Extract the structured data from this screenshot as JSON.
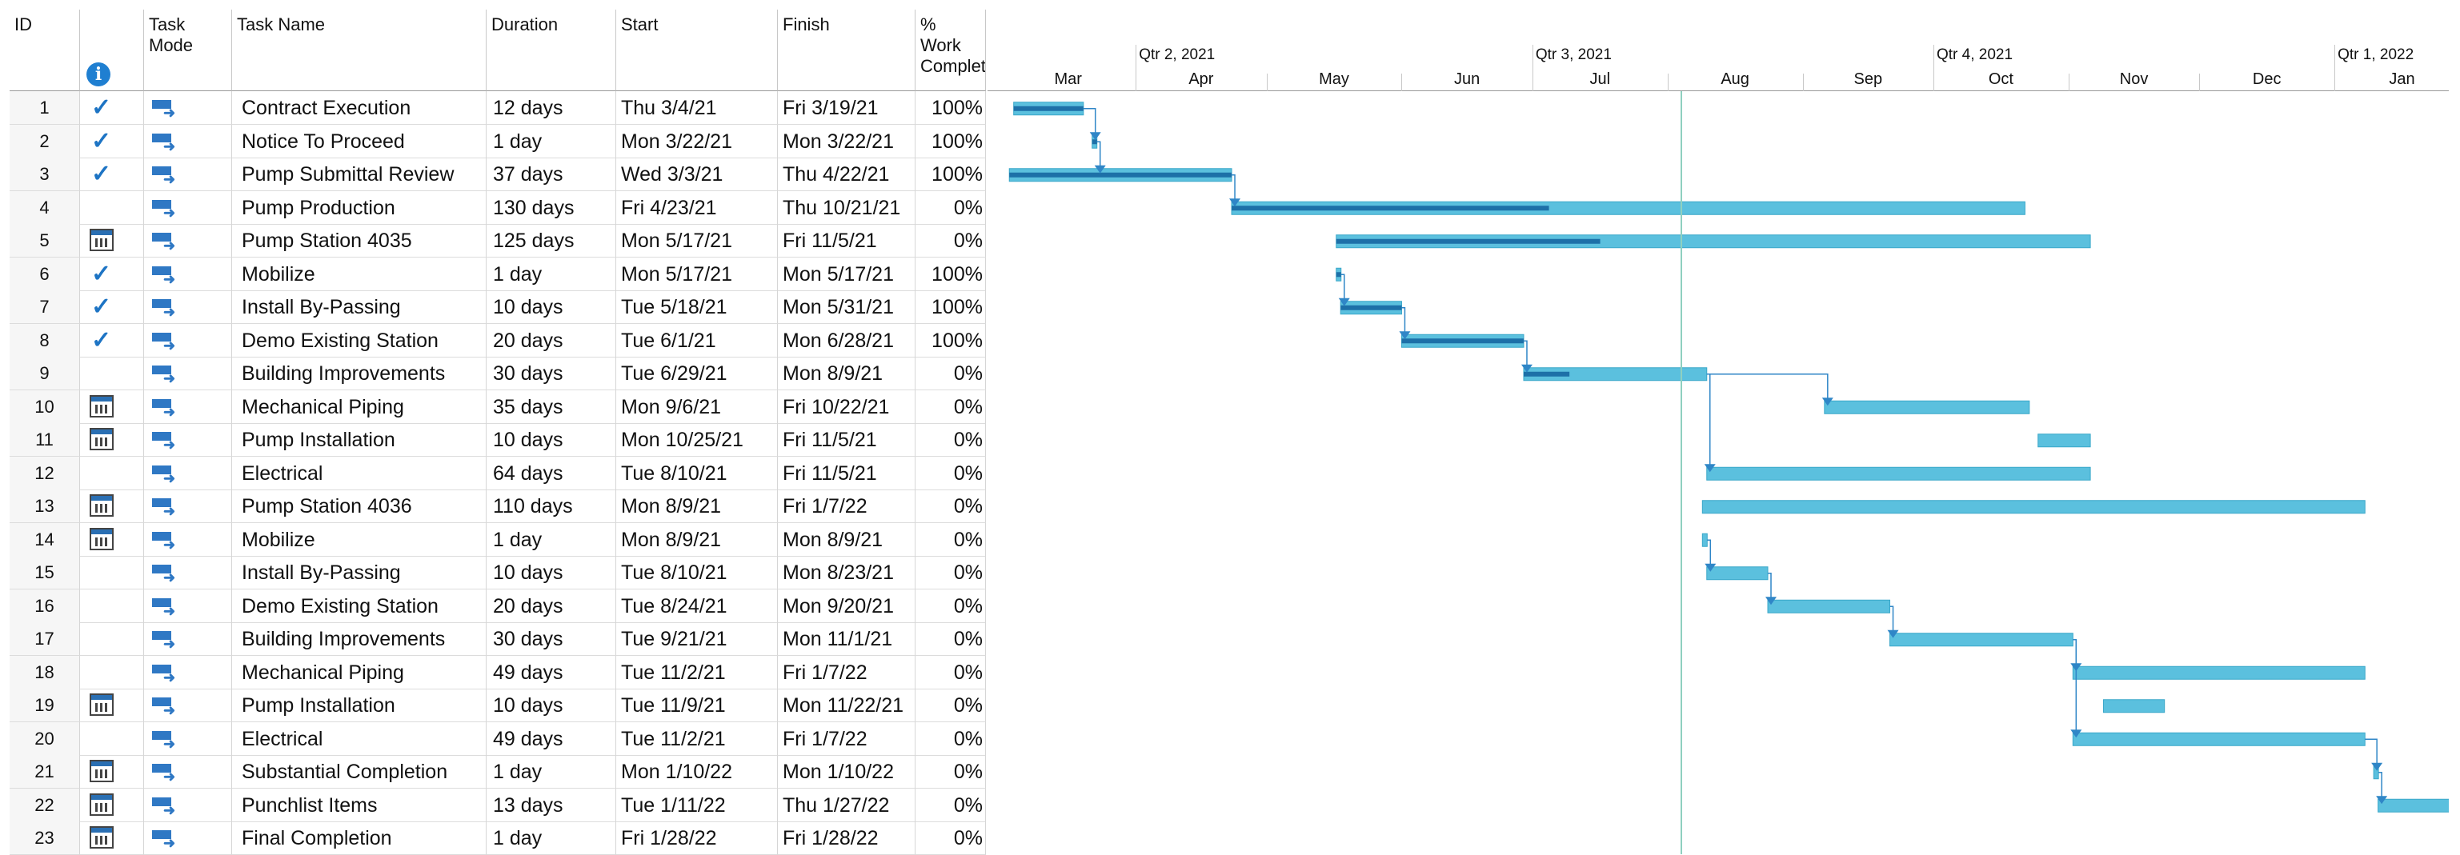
{
  "columns": {
    "id": "ID",
    "indicator_icon": "info-icon",
    "task_mode": "Task Mode",
    "task_name": "Task Name",
    "duration": "Duration",
    "start": "Start",
    "finish": "Finish",
    "pct_work": "% Work Complete"
  },
  "timescale": {
    "quarters": [
      "Qtr 2, 2021",
      "Qtr 3, 2021",
      "Qtr 4, 2021",
      "Qtr 1, 2022"
    ],
    "months": [
      "Mar",
      "Apr",
      "May",
      "Jun",
      "Jul",
      "Aug",
      "Sep",
      "Oct",
      "Nov",
      "Dec",
      "Jan"
    ]
  },
  "colors": {
    "bar": "#5bc0de",
    "progress": "#1d70a8",
    "link": "#2f86c7",
    "check": "#1d74c4",
    "today_line": "#8fd0c0"
  },
  "tasks": [
    {
      "id": "1",
      "indicator": "check",
      "name": "Contract Execution",
      "duration": "12 days",
      "start": "Thu 3/4/21",
      "finish": "Fri 3/19/21",
      "pct": "100%"
    },
    {
      "id": "2",
      "indicator": "check",
      "name": "Notice To Proceed",
      "duration": "1 day",
      "start": "Mon 3/22/21",
      "finish": "Mon 3/22/21",
      "pct": "100%"
    },
    {
      "id": "3",
      "indicator": "check",
      "name": "Pump Submittal Review",
      "duration": "37 days",
      "start": "Wed 3/3/21",
      "finish": "Thu 4/22/21",
      "pct": "100%"
    },
    {
      "id": "4",
      "indicator": "",
      "name": "Pump Production",
      "duration": "130 days",
      "start": "Fri 4/23/21",
      "finish": "Thu 10/21/21",
      "pct": "0%"
    },
    {
      "id": "5",
      "indicator": "calendar",
      "name": "Pump Station 4035",
      "duration": "125 days",
      "start": "Mon 5/17/21",
      "finish": "Fri 11/5/21",
      "pct": "0%"
    },
    {
      "id": "6",
      "indicator": "check",
      "name": "Mobilize",
      "duration": "1 day",
      "start": "Mon 5/17/21",
      "finish": "Mon 5/17/21",
      "pct": "100%"
    },
    {
      "id": "7",
      "indicator": "check",
      "name": "Install By-Passing",
      "duration": "10 days",
      "start": "Tue 5/18/21",
      "finish": "Mon 5/31/21",
      "pct": "100%"
    },
    {
      "id": "8",
      "indicator": "check",
      "name": "Demo Existing Station",
      "duration": "20 days",
      "start": "Tue 6/1/21",
      "finish": "Mon 6/28/21",
      "pct": "100%"
    },
    {
      "id": "9",
      "indicator": "",
      "name": "Building Improvements",
      "duration": "30 days",
      "start": "Tue 6/29/21",
      "finish": "Mon 8/9/21",
      "pct": "0%"
    },
    {
      "id": "10",
      "indicator": "calendar",
      "name": "Mechanical Piping",
      "duration": "35 days",
      "start": "Mon 9/6/21",
      "finish": "Fri 10/22/21",
      "pct": "0%"
    },
    {
      "id": "11",
      "indicator": "calendar",
      "name": "Pump Installation",
      "duration": "10 days",
      "start": "Mon 10/25/21",
      "finish": "Fri 11/5/21",
      "pct": "0%"
    },
    {
      "id": "12",
      "indicator": "",
      "name": "Electrical",
      "duration": "64 days",
      "start": "Tue 8/10/21",
      "finish": "Fri 11/5/21",
      "pct": "0%"
    },
    {
      "id": "13",
      "indicator": "calendar",
      "name": "Pump Station 4036",
      "duration": "110 days",
      "start": "Mon 8/9/21",
      "finish": "Fri 1/7/22",
      "pct": "0%"
    },
    {
      "id": "14",
      "indicator": "calendar",
      "name": "Mobilize",
      "duration": "1 day",
      "start": "Mon 8/9/21",
      "finish": "Mon 8/9/21",
      "pct": "0%"
    },
    {
      "id": "15",
      "indicator": "",
      "name": "Install By-Passing",
      "duration": "10 days",
      "start": "Tue 8/10/21",
      "finish": "Mon 8/23/21",
      "pct": "0%"
    },
    {
      "id": "16",
      "indicator": "",
      "name": "Demo Existing Station",
      "duration": "20 days",
      "start": "Tue 8/24/21",
      "finish": "Mon 9/20/21",
      "pct": "0%"
    },
    {
      "id": "17",
      "indicator": "",
      "name": "Building Improvements",
      "duration": "30 days",
      "start": "Tue 9/21/21",
      "finish": "Mon 11/1/21",
      "pct": "0%"
    },
    {
      "id": "18",
      "indicator": "",
      "name": "Mechanical Piping",
      "duration": "49 days",
      "start": "Tue 11/2/21",
      "finish": "Fri 1/7/22",
      "pct": "0%"
    },
    {
      "id": "19",
      "indicator": "calendar",
      "name": "Pump Installation",
      "duration": "10 days",
      "start": "Tue 11/9/21",
      "finish": "Mon 11/22/21",
      "pct": "0%"
    },
    {
      "id": "20",
      "indicator": "",
      "name": "Electrical",
      "duration": "49 days",
      "start": "Tue 11/2/21",
      "finish": "Fri 1/7/22",
      "pct": "0%"
    },
    {
      "id": "21",
      "indicator": "calendar",
      "name": "Substantial Completion",
      "duration": "1 day",
      "start": "Mon 1/10/22",
      "finish": "Mon 1/10/22",
      "pct": "0%"
    },
    {
      "id": "22",
      "indicator": "calendar",
      "name": "Punchlist Items",
      "duration": "13 days",
      "start": "Tue 1/11/22",
      "finish": "Thu 1/27/22",
      "pct": "0%"
    },
    {
      "id": "23",
      "indicator": "calendar",
      "name": "Final Completion",
      "duration": "1 day",
      "start": "Fri 1/28/22",
      "finish": "Fri 1/28/22",
      "pct": "0%"
    }
  ],
  "bars": [
    {
      "task": "1",
      "start": "2021-03-04",
      "finish": "2021-03-19",
      "progress": 1.0
    },
    {
      "task": "2",
      "start": "2021-03-22",
      "finish": "2021-03-22",
      "progress": 1.0
    },
    {
      "task": "3",
      "start": "2021-03-03",
      "finish": "2021-04-22",
      "progress": 1.0
    },
    {
      "task": "4",
      "start": "2021-04-23",
      "finish": "2021-10-21",
      "progress": 0.4
    },
    {
      "task": "5",
      "start": "2021-05-17",
      "finish": "2021-11-05",
      "progress": 0.35
    },
    {
      "task": "6",
      "start": "2021-05-17",
      "finish": "2021-05-17",
      "progress": 1.0
    },
    {
      "task": "7",
      "start": "2021-05-18",
      "finish": "2021-05-31",
      "progress": 1.0
    },
    {
      "task": "8",
      "start": "2021-06-01",
      "finish": "2021-06-28",
      "progress": 1.0
    },
    {
      "task": "9",
      "start": "2021-06-29",
      "finish": "2021-08-09",
      "progress": 0.25
    },
    {
      "task": "10",
      "start": "2021-09-06",
      "finish": "2021-10-22",
      "progress": 0
    },
    {
      "task": "11",
      "start": "2021-10-25",
      "finish": "2021-11-05",
      "progress": 0
    },
    {
      "task": "12",
      "start": "2021-08-10",
      "finish": "2021-11-05",
      "progress": 0
    },
    {
      "task": "13",
      "start": "2021-08-09",
      "finish": "2022-01-07",
      "progress": 0
    },
    {
      "task": "14",
      "start": "2021-08-09",
      "finish": "2021-08-09",
      "progress": 0
    },
    {
      "task": "15",
      "start": "2021-08-10",
      "finish": "2021-08-23",
      "progress": 0
    },
    {
      "task": "16",
      "start": "2021-08-24",
      "finish": "2021-09-20",
      "progress": 0
    },
    {
      "task": "17",
      "start": "2021-09-21",
      "finish": "2021-11-01",
      "progress": 0
    },
    {
      "task": "18",
      "start": "2021-11-02",
      "finish": "2022-01-07",
      "progress": 0
    },
    {
      "task": "19",
      "start": "2021-11-09",
      "finish": "2021-11-22",
      "progress": 0
    },
    {
      "task": "20",
      "start": "2021-11-02",
      "finish": "2022-01-07",
      "progress": 0
    },
    {
      "task": "21",
      "start": "2022-01-10",
      "finish": "2022-01-10",
      "progress": 0
    },
    {
      "task": "22",
      "start": "2022-01-11",
      "finish": "2022-01-27",
      "progress": 0
    },
    {
      "task": "23",
      "start": "2022-01-28",
      "finish": "2022-01-28",
      "progress": 0
    }
  ],
  "links": [
    [
      "1",
      "2"
    ],
    [
      "2",
      "3"
    ],
    [
      "3",
      "4"
    ],
    [
      "6",
      "7"
    ],
    [
      "7",
      "8"
    ],
    [
      "8",
      "9"
    ],
    [
      "9",
      "10"
    ],
    [
      "9",
      "12"
    ],
    [
      "14",
      "15"
    ],
    [
      "15",
      "16"
    ],
    [
      "16",
      "17"
    ],
    [
      "17",
      "18"
    ],
    [
      "17",
      "20"
    ],
    [
      "20",
      "21"
    ],
    [
      "21",
      "22"
    ],
    [
      "22",
      "23"
    ]
  ],
  "status_date": "2021-08-04"
}
